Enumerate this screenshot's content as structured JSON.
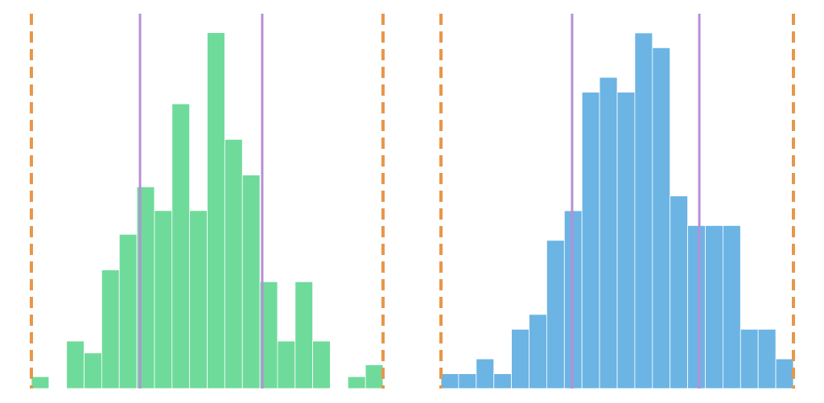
{
  "chart_data": [
    {
      "type": "histogram",
      "color": "#6fdb9b",
      "bins": [
        0,
        1,
        2,
        3,
        4,
        5,
        6,
        7,
        8,
        9,
        10,
        11,
        12,
        13,
        14,
        15,
        16,
        17,
        18,
        19,
        20
      ],
      "values": [
        1,
        0,
        4,
        3,
        10,
        13,
        17,
        15,
        24,
        15,
        30,
        21,
        18,
        9,
        4,
        9,
        4,
        0,
        1,
        2
      ],
      "xlim": [
        0,
        20
      ],
      "ylim": [
        0,
        31.6
      ],
      "lines": [
        {
          "value": 0,
          "color": "#e8974a",
          "style": "dashed"
        },
        {
          "value": 20,
          "color": "#e8974a",
          "style": "dashed"
        },
        {
          "value": 6.18,
          "color": "#b78fd6",
          "style": "solid"
        },
        {
          "value": 13.13,
          "color": "#b78fd6",
          "style": "solid"
        }
      ]
    },
    {
      "type": "histogram",
      "color": "#6cb4e4",
      "bins": [
        0,
        1,
        2,
        3,
        4,
        5,
        6,
        7,
        8,
        9,
        10,
        11,
        12,
        13,
        14,
        15,
        16,
        17,
        18,
        19,
        20
      ],
      "values": [
        1,
        1,
        2,
        1,
        4,
        5,
        10,
        12,
        20,
        21,
        20,
        24,
        23,
        13,
        11,
        11,
        11,
        4,
        4,
        2
      ],
      "xlim": [
        0,
        20
      ],
      "ylim": [
        0,
        25.3
      ],
      "lines": [
        {
          "value": 0,
          "color": "#e8974a",
          "style": "dashed"
        },
        {
          "value": 20,
          "color": "#e8974a",
          "style": "dashed"
        },
        {
          "value": 7.44,
          "color": "#b78fd6",
          "style": "solid"
        },
        {
          "value": 14.66,
          "color": "#b78fd6",
          "style": "solid"
        }
      ]
    }
  ]
}
